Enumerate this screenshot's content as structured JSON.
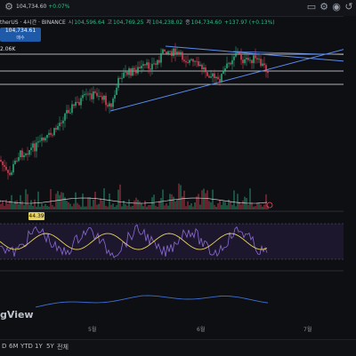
{
  "header": {
    "symbol_title": "therUS · 4시간 · BINANCE",
    "open_label": "시",
    "open_value": "104,596.64",
    "high_label": "고",
    "high_value": "104,769.25",
    "low_label": "저",
    "low_value": "104,238.02",
    "close_label": "종",
    "close_value": "104,734.60",
    "change_value": "+137.97 (+0.13%)",
    "top_price": "104,734.60",
    "top_change": "+0.07%"
  },
  "price_tag": {
    "price": "104,734.61",
    "sub": "매수"
  },
  "volume_label": "2.06K",
  "rsi": {
    "value": "44.39"
  },
  "watermark": "gView",
  "x_axis": {
    "ticks": [
      "5월",
      "6월",
      "7월"
    ]
  },
  "range_buttons": [
    "D",
    "6M",
    "YTD",
    "1Y",
    "5Y",
    "전체"
  ],
  "icons": [
    "settings-icon",
    "gear-icon",
    "window-icon",
    "camera-icon",
    "undo-icon"
  ],
  "colors": {
    "up": "#2ebd85",
    "down": "#f6465d",
    "trendline": "#5b8cf0",
    "rsi_line": "#8c6bd6",
    "rsi_ma": "#e8d25a",
    "bottom_indicator": "#3e6fd1"
  }
}
